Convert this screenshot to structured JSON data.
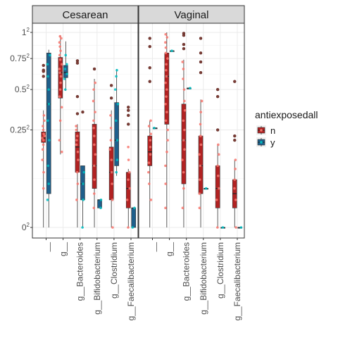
{
  "chart_data": {
    "type": "boxplot",
    "facets": [
      "Cesarean",
      "Vaginal"
    ],
    "categories": [
      "__",
      "g__",
      "g__Bacteroides",
      "g__Bifidobacterium",
      "g__Clostridium",
      "g__Faecalibacterium"
    ],
    "y_ticks": [
      {
        "value": 0,
        "label": "0",
        "sup": "2"
      },
      {
        "value": 0.25,
        "label": "0.25",
        "sup": "2"
      },
      {
        "value": 0.5,
        "label": "0.5",
        "sup": "2"
      },
      {
        "value": 0.75,
        "label": "0.75",
        "sup": "2"
      },
      {
        "value": 1,
        "label": "1",
        "sup": "2"
      }
    ],
    "y_scale": "sqrt",
    "ylim": [
      0,
      1
    ],
    "grid": true,
    "legend": {
      "title": "antiexposedall",
      "position": "right",
      "entries": [
        {
          "key": "n",
          "label": "n",
          "color": "#B22222",
          "point_color": "#F8766D"
        },
        {
          "key": "y",
          "label": "y",
          "color": "#1F5F8B",
          "point_color": "#00BFC4"
        }
      ]
    },
    "series": [
      {
        "facet": "Cesarean",
        "category": "__",
        "group": "n",
        "min": 0.0,
        "q1": 0.19,
        "median": 0.21,
        "q3": 0.24,
        "max": 0.36,
        "outliers": [
          0.6,
          0.65,
          0.69,
          0.64
        ],
        "jitter": [
          0.04,
          0.08,
          0.12,
          0.16,
          0.18,
          0.2,
          0.21,
          0.22,
          0.23,
          0.25,
          0.27,
          0.3,
          0.33
        ]
      },
      {
        "facet": "Cesarean",
        "category": "__",
        "group": "y",
        "min": 0.0,
        "q1": 0.03,
        "median": 0.4,
        "q3": 0.8,
        "max": 0.83,
        "outliers": [],
        "jitter": [
          0.02,
          0.05,
          0.1,
          0.2,
          0.3,
          0.4,
          0.5,
          0.6,
          0.7,
          0.78
        ]
      },
      {
        "facet": "Cesarean",
        "category": "g__",
        "group": "n",
        "min": 0.14,
        "q1": 0.44,
        "median": 0.63,
        "q3": 0.76,
        "max": 0.97,
        "outliers": [],
        "jitter": [
          0.15,
          0.2,
          0.3,
          0.38,
          0.45,
          0.5,
          0.55,
          0.6,
          0.63,
          0.66,
          0.7,
          0.74,
          0.78,
          0.82,
          0.86,
          0.9,
          0.94,
          0.96
        ]
      },
      {
        "facet": "Cesarean",
        "category": "g__",
        "group": "y",
        "min": 0.49,
        "q1": 0.59,
        "median": 0.63,
        "q3": 0.69,
        "max": 0.91,
        "outliers": [],
        "jitter": [
          0.5,
          0.58,
          0.62,
          0.66,
          0.7,
          0.78
        ]
      },
      {
        "facet": "Cesarean",
        "category": "g__Bacteroides",
        "group": "n",
        "min": 0.0,
        "q1": 0.08,
        "median": 0.17,
        "q3": 0.24,
        "max": 0.28,
        "outliers": [
          0.73,
          0.71,
          0.45,
          0.34
        ],
        "jitter": [
          0.02,
          0.05,
          0.08,
          0.12,
          0.15,
          0.18,
          0.2,
          0.22,
          0.25,
          0.27
        ]
      },
      {
        "facet": "Cesarean",
        "category": "g__Bacteroides",
        "group": "y",
        "min": 0.0,
        "q1": 0.02,
        "median": 0.05,
        "q3": 0.1,
        "max": 0.1,
        "outliers": [
          0.35
        ],
        "jitter": [
          0.0,
          0.02,
          0.05,
          0.08
        ]
      },
      {
        "facet": "Cesarean",
        "category": "g__Bifidobacterium",
        "group": "n",
        "min": 0.0,
        "q1": 0.04,
        "median": 0.1,
        "q3": 0.28,
        "max": 0.58,
        "outliers": [
          0.66
        ],
        "jitter": [
          0.01,
          0.03,
          0.06,
          0.1,
          0.14,
          0.18,
          0.22,
          0.26,
          0.3,
          0.35,
          0.42,
          0.5,
          0.55
        ]
      },
      {
        "facet": "Cesarean",
        "category": "g__Bifidobacterium",
        "group": "y",
        "min": 0.01,
        "q1": 0.01,
        "median": 0.02,
        "q3": 0.02,
        "max": 0.02,
        "outliers": [],
        "jitter": [
          0.01,
          0.02
        ]
      },
      {
        "facet": "Cesarean",
        "category": "g__Clostridium",
        "group": "n",
        "min": 0.0,
        "q1": 0.02,
        "median": 0.08,
        "q3": 0.17,
        "max": 0.36,
        "outliers": [
          0.53,
          0.44
        ],
        "jitter": [
          0.0,
          0.02,
          0.05,
          0.08,
          0.12,
          0.16,
          0.2,
          0.26,
          0.33
        ]
      },
      {
        "facet": "Cesarean",
        "category": "g__Clostridium",
        "group": "y",
        "min": 0.07,
        "q1": 0.1,
        "median": 0.2,
        "q3": 0.41,
        "max": 0.66,
        "outliers": [],
        "jitter": [
          0.08,
          0.12,
          0.2,
          0.3,
          0.4,
          0.5,
          0.6,
          0.65
        ]
      },
      {
        "facet": "Cesarean",
        "category": "g__Faecalibacterium",
        "group": "n",
        "min": 0.0,
        "q1": 0.01,
        "median": 0.04,
        "q3": 0.08,
        "max": 0.09,
        "outliers": [
          0.38,
          0.36,
          0.33,
          0.28
        ],
        "jitter": [
          0.0,
          0.02,
          0.04,
          0.06,
          0.08,
          0.12,
          0.17
        ]
      },
      {
        "facet": "Cesarean",
        "category": "g__Faecalibacterium",
        "group": "y",
        "min": 0.0,
        "q1": 0.0,
        "median": 0.01,
        "q3": 0.01,
        "max": 0.01,
        "outliers": [],
        "jitter": [
          0.0,
          0.01
        ]
      },
      {
        "facet": "Vaginal",
        "category": "__",
        "group": "n",
        "min": 0.0,
        "q1": 0.1,
        "median": 0.15,
        "q3": 0.22,
        "max": 0.3,
        "outliers": [
          0.94,
          0.86,
          0.67,
          0.56
        ],
        "jitter": [
          0.02,
          0.05,
          0.08,
          0.11,
          0.14,
          0.17,
          0.2,
          0.23,
          0.27,
          0.3
        ]
      },
      {
        "facet": "Vaginal",
        "category": "__",
        "group": "y",
        "min": 0.26,
        "q1": 0.26,
        "median": 0.26,
        "q3": 0.26,
        "max": 0.26,
        "outliers": [],
        "jitter": [
          0.26
        ]
      },
      {
        "facet": "Vaginal",
        "category": "g__",
        "group": "n",
        "min": 0.0,
        "q1": 0.28,
        "median": 0.6,
        "q3": 0.8,
        "max": 1.0,
        "outliers": [],
        "jitter": [
          0.01,
          0.05,
          0.1,
          0.15,
          0.2,
          0.25,
          0.3,
          0.35,
          0.4,
          0.45,
          0.5,
          0.55,
          0.6,
          0.65,
          0.7,
          0.75,
          0.8,
          0.85,
          0.9,
          0.95,
          0.98
        ]
      },
      {
        "facet": "Vaginal",
        "category": "g__",
        "group": "y",
        "min": 0.82,
        "q1": 0.82,
        "median": 0.82,
        "q3": 0.82,
        "max": 0.82,
        "outliers": [],
        "jitter": [
          0.82
        ]
      },
      {
        "facet": "Vaginal",
        "category": "g__Bacteroides",
        "group": "n",
        "min": 0.0,
        "q1": 0.05,
        "median": 0.2,
        "q3": 0.4,
        "max": 0.74,
        "outliers": [
          0.99,
          0.97,
          0.88,
          0.84
        ],
        "jitter": [
          0.01,
          0.04,
          0.08,
          0.12,
          0.16,
          0.2,
          0.25,
          0.3,
          0.36,
          0.42,
          0.5,
          0.58,
          0.66,
          0.72
        ]
      },
      {
        "facet": "Vaginal",
        "category": "g__Bacteroides",
        "group": "y",
        "min": 0.51,
        "q1": 0.51,
        "median": 0.51,
        "q3": 0.51,
        "max": 0.51,
        "outliers": [],
        "jitter": [
          0.51
        ]
      },
      {
        "facet": "Vaginal",
        "category": "g__Bifidobacterium",
        "group": "n",
        "min": 0.0,
        "q1": 0.03,
        "median": 0.1,
        "q3": 0.22,
        "max": 0.43,
        "outliers": [
          0.94,
          0.8,
          0.72,
          0.63
        ],
        "jitter": [
          0.01,
          0.03,
          0.06,
          0.1,
          0.14,
          0.18,
          0.22,
          0.28,
          0.35,
          0.42
        ]
      },
      {
        "facet": "Vaginal",
        "category": "g__Bifidobacterium",
        "group": "y",
        "min": 0.04,
        "q1": 0.04,
        "median": 0.04,
        "q3": 0.04,
        "max": 0.04,
        "outliers": [],
        "jitter": [
          0.04
        ]
      },
      {
        "facet": "Vaginal",
        "category": "g__Clostridium",
        "group": "n",
        "min": 0.0,
        "q1": 0.01,
        "median": 0.04,
        "q3": 0.1,
        "max": 0.18,
        "outliers": [
          0.5,
          0.45,
          0.25
        ],
        "jitter": [
          0.0,
          0.02,
          0.04,
          0.07,
          0.1,
          0.14,
          0.18
        ]
      },
      {
        "facet": "Vaginal",
        "category": "g__Clostridium",
        "group": "y",
        "min": 0.0,
        "q1": 0.0,
        "median": 0.0,
        "q3": 0.0,
        "max": 0.0,
        "outliers": [],
        "jitter": [
          0.0
        ]
      },
      {
        "facet": "Vaginal",
        "category": "g__Faecalibacterium",
        "group": "n",
        "min": 0.0,
        "q1": 0.01,
        "median": 0.03,
        "q3": 0.06,
        "max": 0.12,
        "outliers": [
          0.56,
          0.22,
          0.2
        ],
        "jitter": [
          0.0,
          0.02,
          0.04,
          0.06,
          0.09,
          0.12
        ]
      },
      {
        "facet": "Vaginal",
        "category": "g__Faecalibacterium",
        "group": "y",
        "min": 0.0,
        "q1": 0.0,
        "median": 0.0,
        "q3": 0.0,
        "max": 0.0,
        "outliers": [],
        "jitter": [
          0.0
        ]
      }
    ]
  }
}
